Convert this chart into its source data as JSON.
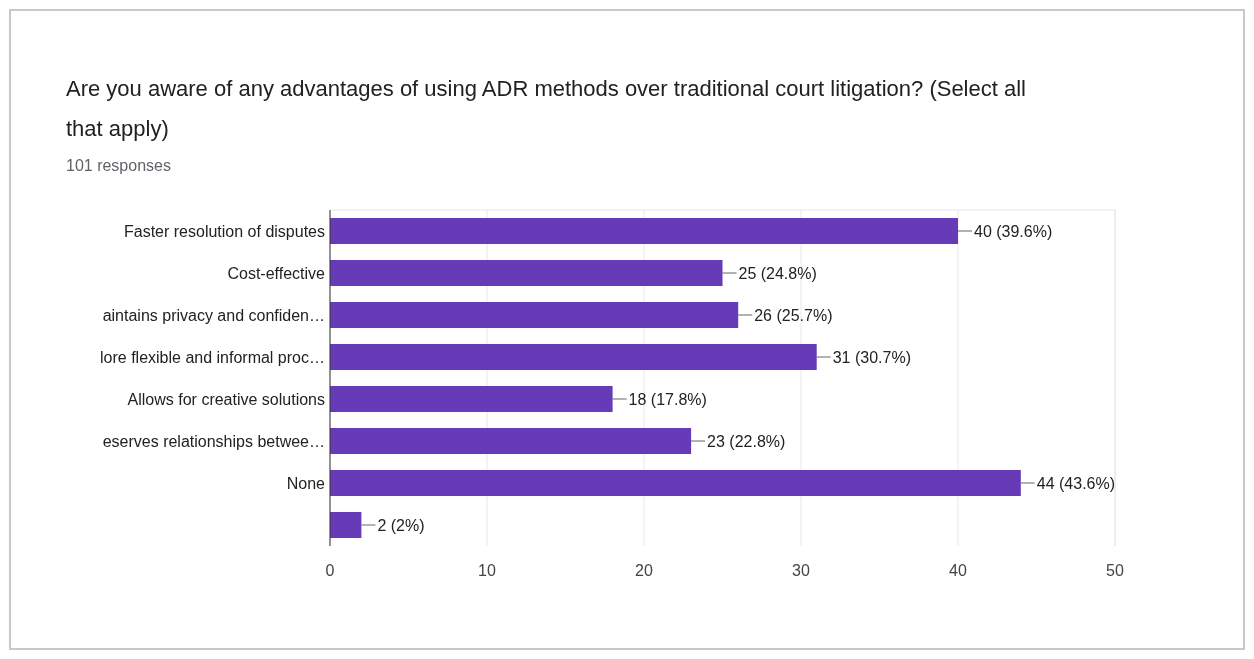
{
  "chart_data": {
    "type": "bar",
    "orientation": "horizontal",
    "title": "Are you aware of any advantages of using ADR methods over traditional court litigation? (Select all that apply)",
    "subtitle": "101 responses",
    "categories": [
      "Faster resolution of disputes",
      "Cost-effective",
      "aintains privacy and confiden…",
      "lore flexible and informal proc…",
      "Allows for creative solutions",
      "eserves relationships betwee…",
      "None",
      null
    ],
    "values": [
      40,
      25,
      26,
      31,
      18,
      23,
      44,
      2
    ],
    "value_labels": [
      "40 (39.6%)",
      "25 (24.8%)",
      "26 (25.7%)",
      "31 (30.7%)",
      "18 (17.8%)",
      "23 (22.8%)",
      "44 (43.6%)",
      "2 (2%)"
    ],
    "color": "#673ab7",
    "xlim": [
      0,
      50
    ],
    "xticks": [
      0,
      10,
      20,
      30,
      40,
      50
    ],
    "grid": "x"
  }
}
